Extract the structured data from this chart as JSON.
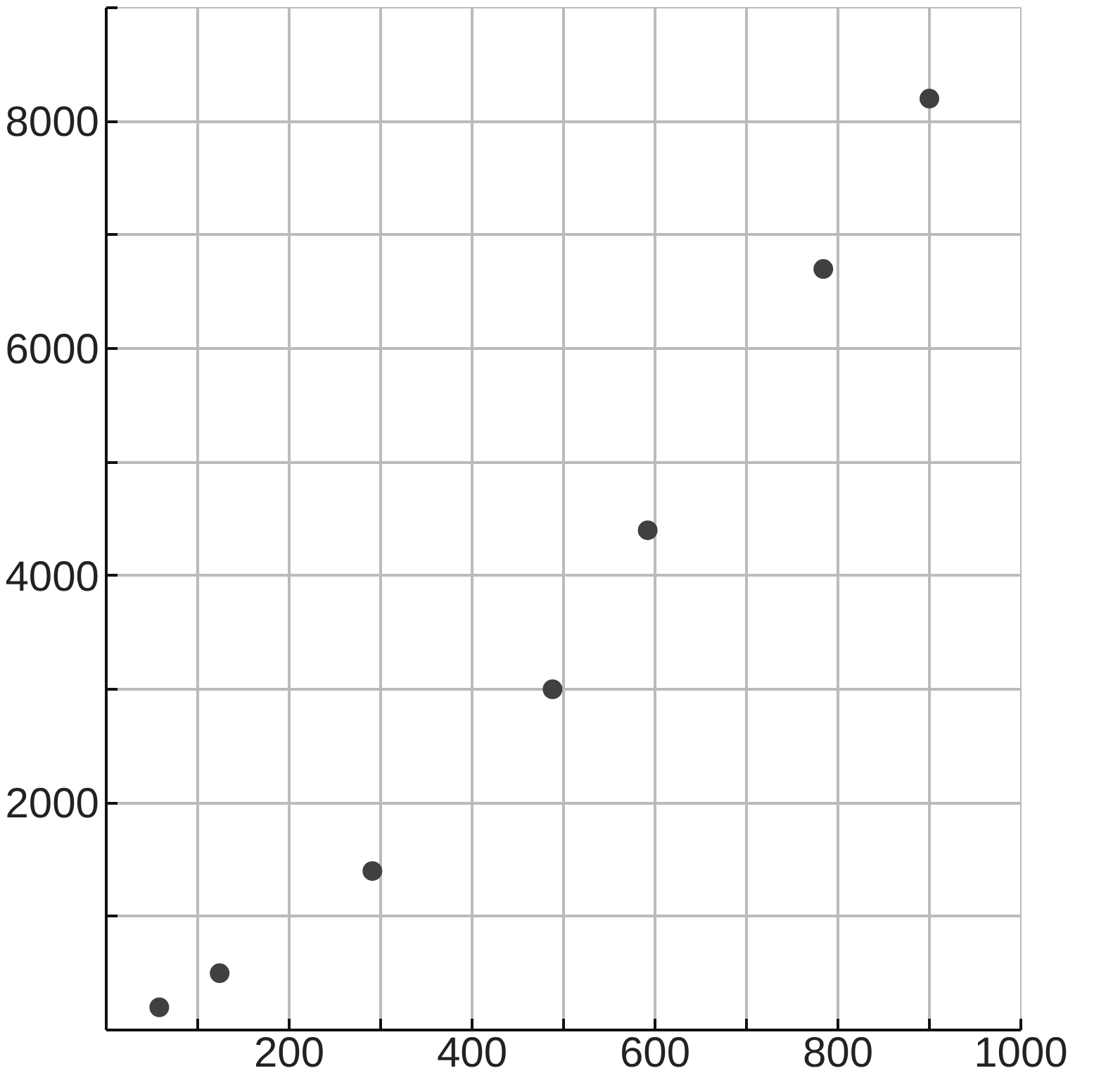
{
  "chart_data": {
    "type": "scatter",
    "x": [
      58,
      124,
      291,
      488,
      592,
      784,
      900
    ],
    "values": [
      200,
      500,
      1400,
      3000,
      4400,
      6700,
      8200
    ],
    "color": "#404040",
    "marker": "circle",
    "grid": true,
    "xlim": [
      0,
      1000
    ],
    "ylim": [
      0,
      9000
    ],
    "xticks": [
      {
        "value": 100,
        "label": null
      },
      200,
      {
        "value": 300,
        "label": null
      },
      400,
      {
        "value": 500,
        "label": null
      },
      600,
      {
        "value": 700,
        "label": null
      },
      800,
      {
        "value": 900,
        "label": null
      },
      1000
    ],
    "yticks": [
      {
        "value": 1000,
        "label": null
      },
      2000,
      {
        "value": 3000,
        "label": null
      },
      4000,
      {
        "value": 5000,
        "label": null
      },
      6000,
      {
        "value": 7000,
        "label": null
      },
      8000,
      {
        "value": 9000,
        "label": null
      }
    ]
  }
}
